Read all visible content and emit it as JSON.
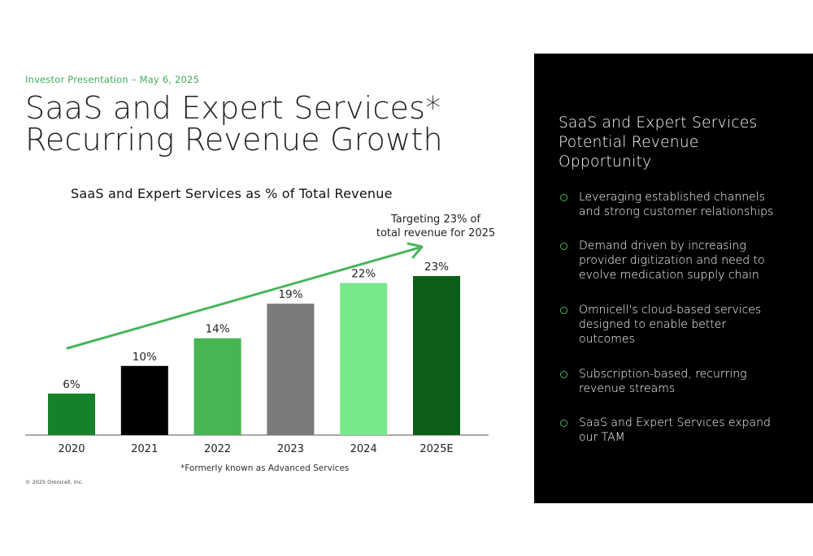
{
  "header": {
    "eyebrow": "Investor Presentation – May 6, 2025",
    "title_line1": "SaaS and Expert Services*",
    "title_line2": "Recurring Revenue Growth"
  },
  "chart_data": {
    "type": "bar",
    "title": "SaaS and Expert Services as % of Total Revenue",
    "categories": [
      "2020",
      "2021",
      "2022",
      "2023",
      "2024",
      "2025E"
    ],
    "values": [
      6,
      10,
      14,
      19,
      22,
      23
    ],
    "value_labels": [
      "6%",
      "10%",
      "14%",
      "19%",
      "22%",
      "23%"
    ],
    "bar_colors": [
      "#15822a",
      "#000000",
      "#47b553",
      "#7a7a7a",
      "#78e88b",
      "#0c5e19"
    ],
    "ylim": [
      0,
      27
    ],
    "grid": false,
    "annotation": {
      "text_line1": "Targeting 23% of",
      "text_line2": "total revenue for 2025",
      "arrow_color": "#48b55a"
    }
  },
  "footnote": "*Formerly known as Advanced Services",
  "copyright": "© 2025 Omnicell, Inc.",
  "panel": {
    "title_line1": "SaaS and Expert Services",
    "title_line2": "Potential Revenue",
    "title_line3": "Opportunity",
    "bullet_icon": "circle-outline-icon",
    "bullet_color": "#49b85c",
    "bullets": [
      {
        "text": "Leveraging established channels\nand strong customer relationships"
      },
      {
        "text": "Demand driven by increasing\nprovider digitization and need to\nevolve medication supply chain"
      },
      {
        "text": "Omnicell's cloud-based services\ndesigned to enable better\noutcomes"
      },
      {
        "text": "Subscription-based, recurring\nrevenue streams"
      },
      {
        "text": "SaaS and Expert Services expand\nour TAM"
      }
    ]
  }
}
